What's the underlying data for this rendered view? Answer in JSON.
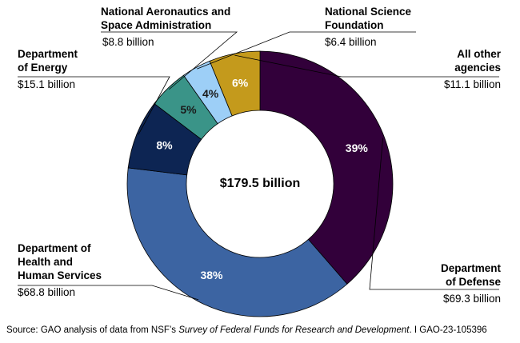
{
  "chart_data": {
    "type": "pie",
    "variant": "donut",
    "center_label": "$179.5 billion",
    "slices": [
      {
        "key": "dod",
        "name": "Department of Defense",
        "name_lines": [
          "Department",
          "of Defense"
        ],
        "value_label": "$69.3 billion",
        "value": 69.3,
        "percent_label": "39%",
        "color": "#32003a"
      },
      {
        "key": "hhs",
        "name": "Department of Health and Human Services",
        "name_lines": [
          "Department of",
          "Health and",
          "Human Services"
        ],
        "value_label": "$68.8 billion",
        "value": 68.8,
        "percent_label": "38%",
        "color": "#3c64a2"
      },
      {
        "key": "doe",
        "name": "Department of Energy",
        "name_lines": [
          "Department",
          "of Energy"
        ],
        "value_label": "$15.1 billion",
        "value": 15.1,
        "percent_label": "8%",
        "color": "#0d2553"
      },
      {
        "key": "nasa",
        "name": "National Aeronautics and Space Administration",
        "name_lines": [
          "National Aeronautics and",
          "Space Administration"
        ],
        "value_label": "$8.8 billion",
        "value": 8.8,
        "percent_label": "5%",
        "color": "#3a9488"
      },
      {
        "key": "nsf",
        "name": "National Science Foundation",
        "name_lines": [
          "National Science",
          "Foundation"
        ],
        "value_label": "$6.4 billion",
        "value": 6.4,
        "percent_label": "4%",
        "color": "#9dcff7"
      },
      {
        "key": "other",
        "name": "All other agencies",
        "name_lines": [
          "All other",
          "agencies"
        ],
        "value_label": "$11.1 billion",
        "value": 11.1,
        "percent_label": "6%",
        "color": "#c49a1c"
      }
    ]
  },
  "source": {
    "prefix": "Source: GAO analysis of data from NSF’s ",
    "survey": "Survey of Federal Funds for Research and Development",
    "suffix": ".  I  GAO-23-105396"
  }
}
